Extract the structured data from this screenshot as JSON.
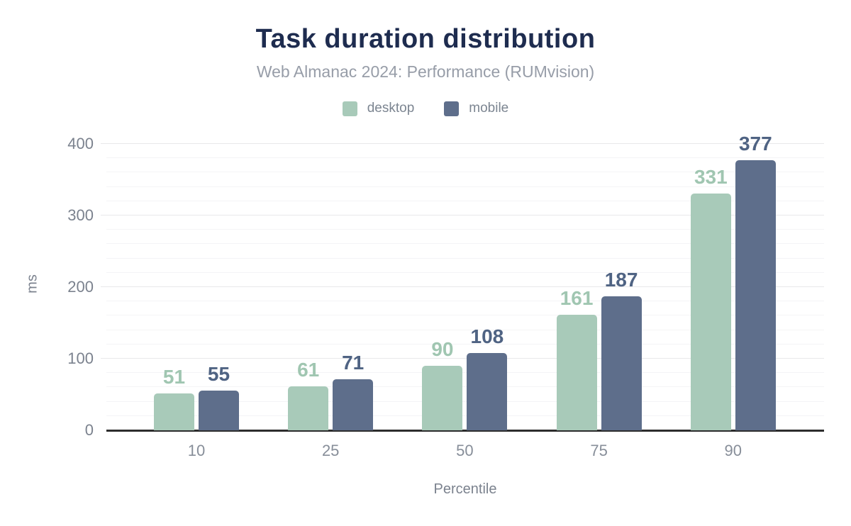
{
  "chart_data": {
    "type": "bar",
    "title": "Task duration distribution",
    "subtitle": "Web Almanac 2024: Performance (RUMvision)",
    "xlabel": "Percentile",
    "ylabel": "ms",
    "categories": [
      "10",
      "25",
      "50",
      "75",
      "90"
    ],
    "series": [
      {
        "name": "desktop",
        "values": [
          51,
          61,
          90,
          161,
          331
        ],
        "color": "#a8cab9",
        "label_color": "#a0c6b1"
      },
      {
        "name": "mobile",
        "values": [
          55,
          71,
          108,
          187,
          377
        ],
        "color": "#5e6e8b",
        "label_color": "#4f6383"
      }
    ],
    "ylim": [
      0,
      400
    ],
    "yticks": [
      0,
      100,
      200,
      300,
      400
    ],
    "minor_grid_step": 20,
    "grid": true,
    "legend_position": "top",
    "value_labels": true
  },
  "colors": {
    "title": "#1e2c4f",
    "subtitle": "#979da8",
    "axis_text": "#7b828e",
    "axis_line": "#2d2d2d",
    "grid_major": "#e8e8ea",
    "grid_minor": "#f4f4f6",
    "background": "#ffffff"
  }
}
